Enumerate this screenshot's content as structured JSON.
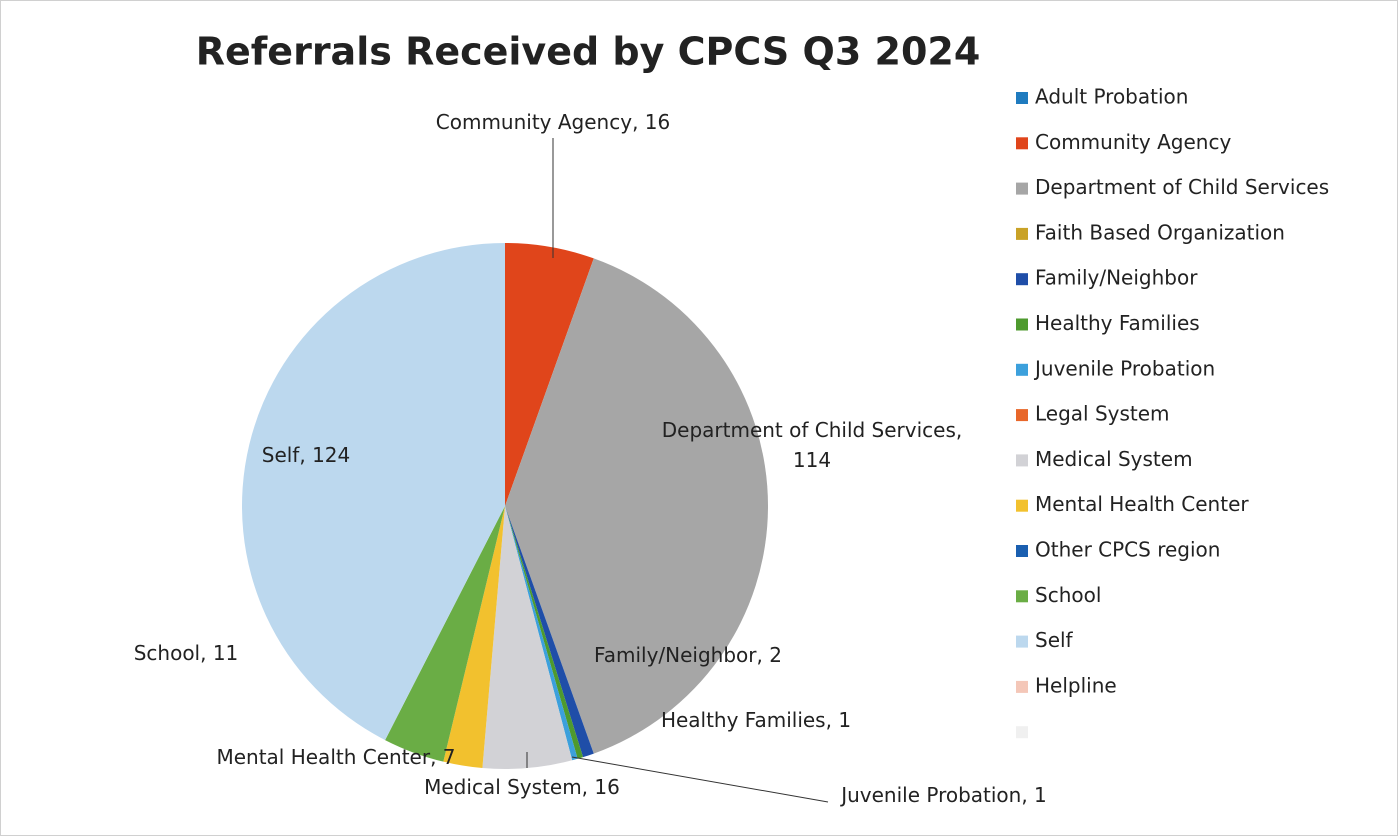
{
  "chart_data": {
    "type": "pie",
    "title": "Referrals Received by CPCS Q3 2024",
    "categories": [
      "Adult Probation",
      "Community Agency",
      "Department of Child Services",
      "Faith Based Organization",
      "Family/Neighbor",
      "Healthy Families",
      "Juvenile Probation",
      "Legal System",
      "Medical System",
      "Mental Health Center",
      "Other CPCS region",
      "School",
      "Self",
      "Helpline",
      null
    ],
    "values": [
      0,
      16,
      114,
      0,
      2,
      1,
      1,
      0,
      16,
      7,
      0,
      11,
      124,
      0,
      0
    ],
    "value_labels": [
      null,
      "Community Agency, 16",
      "Department of Child Services, 114",
      null,
      "Family/Neighbor, 2",
      "Healthy Families, 1",
      "Juvenile Probation, 1",
      null,
      "Medical System, 16",
      "Mental Health Center, 7",
      null,
      "School, 11",
      "Self, 124",
      null,
      null
    ],
    "colors": [
      "#1f7bbf",
      "#e0451b",
      "#a6a6a6",
      "#c9a227",
      "#1f4ea8",
      "#4e9a2e",
      "#3ca0dc",
      "#e8672a",
      "#d2d2d6",
      "#f2c12e",
      "#1a5fb0",
      "#6aad45",
      "#bcd8ee",
      "#f4c7b8",
      "#f0f0f0"
    ],
    "legend": "right"
  }
}
